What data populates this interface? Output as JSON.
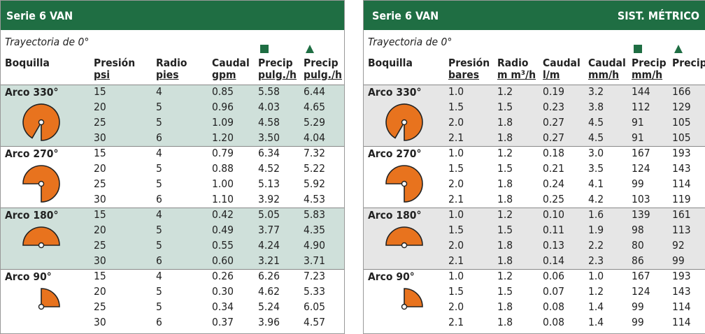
{
  "left": {
    "header": {
      "title": "Serie 6 VAN"
    },
    "subtitle": "Trayectoria de 0°",
    "columns": [
      [
        "Boquilla"
      ],
      [
        "Presión",
        "psi"
      ],
      [
        "Radio",
        "pies"
      ],
      [
        "Caudal",
        "gpm"
      ],
      [
        "Precip",
        "pulg./h"
      ],
      [
        "Precip",
        "pulg./h"
      ]
    ],
    "groups": [
      {
        "label": "Arco 330°",
        "rows": [
          [
            "15",
            "4",
            "0.85",
            "5.58",
            "6.44"
          ],
          [
            "20",
            "5",
            "0.96",
            "4.03",
            "4.65"
          ],
          [
            "25",
            "5",
            "1.09",
            "4.58",
            "5.29"
          ],
          [
            "30",
            "6",
            "1.20",
            "3.50",
            "4.04"
          ]
        ]
      },
      {
        "label": "Arco 270°",
        "rows": [
          [
            "15",
            "4",
            "0.79",
            "6.34",
            "7.32"
          ],
          [
            "20",
            "5",
            "0.88",
            "4.52",
            "5.22"
          ],
          [
            "25",
            "5",
            "1.00",
            "5.13",
            "5.92"
          ],
          [
            "30",
            "6",
            "1.10",
            "3.92",
            "4.53"
          ]
        ]
      },
      {
        "label": "Arco 180°",
        "rows": [
          [
            "15",
            "4",
            "0.42",
            "5.05",
            "5.83"
          ],
          [
            "20",
            "5",
            "0.49",
            "3.77",
            "4.35"
          ],
          [
            "25",
            "5",
            "0.55",
            "4.24",
            "4.90"
          ],
          [
            "30",
            "6",
            "0.60",
            "3.21",
            "3.71"
          ]
        ]
      },
      {
        "label": "Arco 90°",
        "rows": [
          [
            "15",
            "4",
            "0.26",
            "6.26",
            "7.23"
          ],
          [
            "20",
            "5",
            "0.30",
            "4.62",
            "5.33"
          ],
          [
            "25",
            "5",
            "0.34",
            "5.24",
            "6.05"
          ],
          [
            "30",
            "6",
            "0.37",
            "3.96",
            "4.57"
          ]
        ]
      }
    ]
  },
  "right": {
    "header": {
      "title": "Serie 6 VAN",
      "system": "SIST. MÉTRICO"
    },
    "subtitle": "Trayectoria de 0°",
    "columns": [
      [
        "Boquilla"
      ],
      [
        "Presión",
        "bares"
      ],
      [
        "Radio",
        "m m³/h"
      ],
      [
        "Caudal",
        "l/m"
      ],
      [
        "Caudal",
        "mm/h"
      ],
      [
        "Precip",
        "mm/h"
      ],
      [
        "Precip"
      ]
    ],
    "groups": [
      {
        "label": "Arco 330°",
        "rows": [
          [
            "1.0",
            "1.2",
            "0.19",
            "3.2",
            "144",
            "166"
          ],
          [
            "1.5",
            "1.5",
            "0.23",
            "3.8",
            "112",
            "129"
          ],
          [
            "2.0",
            "1.8",
            "0.27",
            "4.5",
            "91",
            "105"
          ],
          [
            "2.1",
            "1.8",
            "0.27",
            "4.5",
            "91",
            "105"
          ]
        ]
      },
      {
        "label": "Arco 270°",
        "rows": [
          [
            "1.0",
            "1.2",
            "0.18",
            "3.0",
            "167",
            "193"
          ],
          [
            "1.5",
            "1.5",
            "0.21",
            "3.5",
            "124",
            "143"
          ],
          [
            "2.0",
            "1.8",
            "0.24",
            "4.1",
            "99",
            "114"
          ],
          [
            "2.1",
            "1.8",
            "0.25",
            "4.2",
            "103",
            "119"
          ]
        ]
      },
      {
        "label": "Arco 180°",
        "rows": [
          [
            "1.0",
            "1.2",
            "0.10",
            "1.6",
            "139",
            "161"
          ],
          [
            "1.5",
            "1.5",
            "0.11",
            "1.9",
            "98",
            "113"
          ],
          [
            "2.0",
            "1.8",
            "0.13",
            "2.2",
            "80",
            "92"
          ],
          [
            "2.1",
            "1.8",
            "0.14",
            "2.3",
            "86",
            "99"
          ]
        ]
      },
      {
        "label": "Arco 90°",
        "rows": [
          [
            "1.0",
            "1.2",
            "0.06",
            "1.0",
            "167",
            "193"
          ],
          [
            "1.5",
            "1.5",
            "0.07",
            "1.2",
            "124",
            "143"
          ],
          [
            "2.0",
            "1.8",
            "0.08",
            "1.4",
            "99",
            "114"
          ],
          [
            "2.1",
            "1.8",
            "0.08",
            "1.4",
            "99",
            "114"
          ]
        ]
      }
    ]
  }
}
